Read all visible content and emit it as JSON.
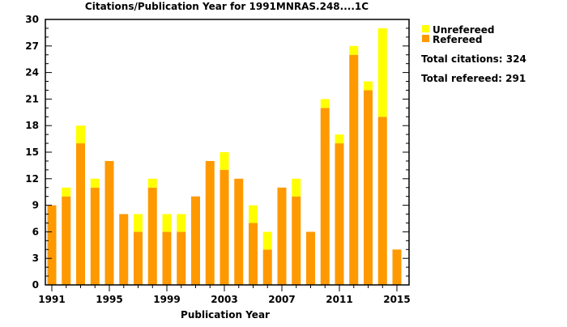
{
  "chart_data": {
    "type": "bar",
    "stacked": true,
    "title": "Citations/Publication Year for 1991MNRAS.248....1C",
    "xlabel": "Publication Year",
    "ylabel": "",
    "ylim": [
      0,
      30
    ],
    "yticks": [
      0,
      3,
      6,
      9,
      12,
      15,
      18,
      21,
      24,
      27,
      30
    ],
    "xtick_labels": [
      "1991",
      "1995",
      "1999",
      "2003",
      "2007",
      "2011",
      "2015"
    ],
    "categories": [
      1991,
      1992,
      1993,
      1994,
      1995,
      1996,
      1997,
      1998,
      1999,
      2000,
      2001,
      2002,
      2003,
      2004,
      2005,
      2006,
      2007,
      2008,
      2009,
      2010,
      2011,
      2012,
      2013,
      2014,
      2015
    ],
    "series": [
      {
        "name": "Refereed",
        "color": "#ff9900",
        "values": [
          9,
          10,
          16,
          11,
          14,
          8,
          6,
          11,
          6,
          6,
          10,
          14,
          13,
          12,
          7,
          4,
          11,
          10,
          6,
          20,
          16,
          26,
          22,
          19,
          4
        ]
      },
      {
        "name": "Unrefereed",
        "color": "#ffff00",
        "values": [
          0,
          1,
          2,
          1,
          0,
          0,
          2,
          1,
          2,
          2,
          0,
          0,
          2,
          0,
          2,
          2,
          0,
          2,
          0,
          1,
          1,
          1,
          1,
          10,
          0
        ]
      }
    ],
    "legend": {
      "placement": "right",
      "entries": [
        "Unrefereed",
        "Refereed"
      ]
    },
    "annotations": [
      "Total citations: 324",
      "Total refereed: 291"
    ]
  }
}
